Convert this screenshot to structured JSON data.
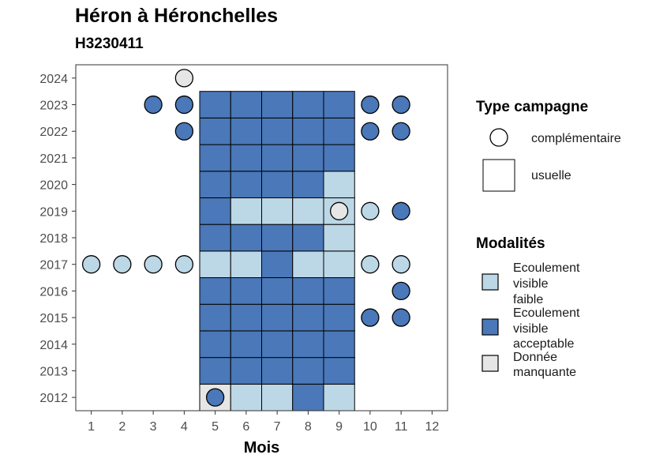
{
  "chart_data": {
    "type": "heatmap",
    "title": "Héron à Héronchelles",
    "subtitle": "H3230411",
    "xlabel": "Mois",
    "ylabel": "",
    "x_ticks": [
      1,
      2,
      3,
      4,
      5,
      6,
      7,
      8,
      9,
      10,
      11,
      12
    ],
    "y_ticks": [
      2012,
      2013,
      2014,
      2015,
      2016,
      2017,
      2018,
      2019,
      2020,
      2021,
      2022,
      2023,
      2024
    ],
    "xlim": [
      0.5,
      12.5
    ],
    "ylim": [
      2011.5,
      2024.5
    ],
    "colors": {
      "faible": "#bcd7e6",
      "acceptable": "#4a78b8",
      "manquante": "#e6e6e6"
    },
    "legend": {
      "type_title": "Type campagne",
      "type_items": [
        {
          "key": "complementaire",
          "label": "complémentaire"
        },
        {
          "key": "usuelle",
          "label": "usuelle"
        }
      ],
      "mod_title": "Modalités",
      "mod_items": [
        {
          "key": "faible",
          "lines": [
            "Ecoulement",
            "visible",
            "faible"
          ]
        },
        {
          "key": "acceptable",
          "lines": [
            "Ecoulement",
            "visible",
            "acceptable"
          ]
        },
        {
          "key": "manquante",
          "lines": [
            "Donnée",
            "manquante"
          ]
        }
      ]
    },
    "usuelle": [
      {
        "year": 2012,
        "values": {
          "5": "manquante",
          "6": "faible",
          "7": "faible",
          "8": "acceptable",
          "9": "faible"
        }
      },
      {
        "year": 2013,
        "values": {
          "5": "acceptable",
          "6": "acceptable",
          "7": "acceptable",
          "8": "acceptable",
          "9": "acceptable"
        }
      },
      {
        "year": 2014,
        "values": {
          "5": "acceptable",
          "6": "acceptable",
          "7": "acceptable",
          "8": "acceptable",
          "9": "acceptable"
        }
      },
      {
        "year": 2015,
        "values": {
          "5": "acceptable",
          "6": "acceptable",
          "7": "acceptable",
          "8": "acceptable",
          "9": "acceptable"
        }
      },
      {
        "year": 2016,
        "values": {
          "5": "acceptable",
          "6": "acceptable",
          "7": "acceptable",
          "8": "acceptable",
          "9": "acceptable"
        }
      },
      {
        "year": 2017,
        "values": {
          "5": "faible",
          "6": "faible",
          "7": "acceptable",
          "8": "faible",
          "9": "faible"
        }
      },
      {
        "year": 2018,
        "values": {
          "5": "acceptable",
          "6": "acceptable",
          "7": "acceptable",
          "8": "acceptable",
          "9": "faible"
        }
      },
      {
        "year": 2019,
        "values": {
          "5": "acceptable",
          "6": "faible",
          "7": "faible",
          "8": "faible",
          "9": "faible"
        }
      },
      {
        "year": 2020,
        "values": {
          "5": "acceptable",
          "6": "acceptable",
          "7": "acceptable",
          "8": "acceptable",
          "9": "faible"
        }
      },
      {
        "year": 2021,
        "values": {
          "5": "acceptable",
          "6": "acceptable",
          "7": "acceptable",
          "8": "acceptable",
          "9": "acceptable"
        }
      },
      {
        "year": 2022,
        "values": {
          "5": "acceptable",
          "6": "acceptable",
          "7": "acceptable",
          "8": "acceptable",
          "9": "acceptable"
        }
      },
      {
        "year": 2023,
        "values": {
          "5": "acceptable",
          "6": "acceptable",
          "7": "acceptable",
          "8": "acceptable",
          "9": "acceptable"
        }
      }
    ],
    "complementaire": [
      {
        "year": 2012,
        "month": 5,
        "value": "acceptable"
      },
      {
        "year": 2015,
        "month": 10,
        "value": "acceptable"
      },
      {
        "year": 2015,
        "month": 11,
        "value": "acceptable"
      },
      {
        "year": 2016,
        "month": 11,
        "value": "acceptable"
      },
      {
        "year": 2017,
        "month": 1,
        "value": "faible"
      },
      {
        "year": 2017,
        "month": 2,
        "value": "faible"
      },
      {
        "year": 2017,
        "month": 3,
        "value": "faible"
      },
      {
        "year": 2017,
        "month": 4,
        "value": "faible"
      },
      {
        "year": 2017,
        "month": 10,
        "value": "faible"
      },
      {
        "year": 2017,
        "month": 11,
        "value": "faible"
      },
      {
        "year": 2019,
        "month": 9,
        "value": "manquante"
      },
      {
        "year": 2019,
        "month": 10,
        "value": "faible"
      },
      {
        "year": 2019,
        "month": 11,
        "value": "acceptable"
      },
      {
        "year": 2022,
        "month": 4,
        "value": "acceptable"
      },
      {
        "year": 2022,
        "month": 10,
        "value": "acceptable"
      },
      {
        "year": 2022,
        "month": 11,
        "value": "acceptable"
      },
      {
        "year": 2023,
        "month": 3,
        "value": "acceptable"
      },
      {
        "year": 2023,
        "month": 4,
        "value": "acceptable"
      },
      {
        "year": 2023,
        "month": 10,
        "value": "acceptable"
      },
      {
        "year": 2023,
        "month": 11,
        "value": "acceptable"
      },
      {
        "year": 2024,
        "month": 4,
        "value": "manquante"
      }
    ]
  }
}
